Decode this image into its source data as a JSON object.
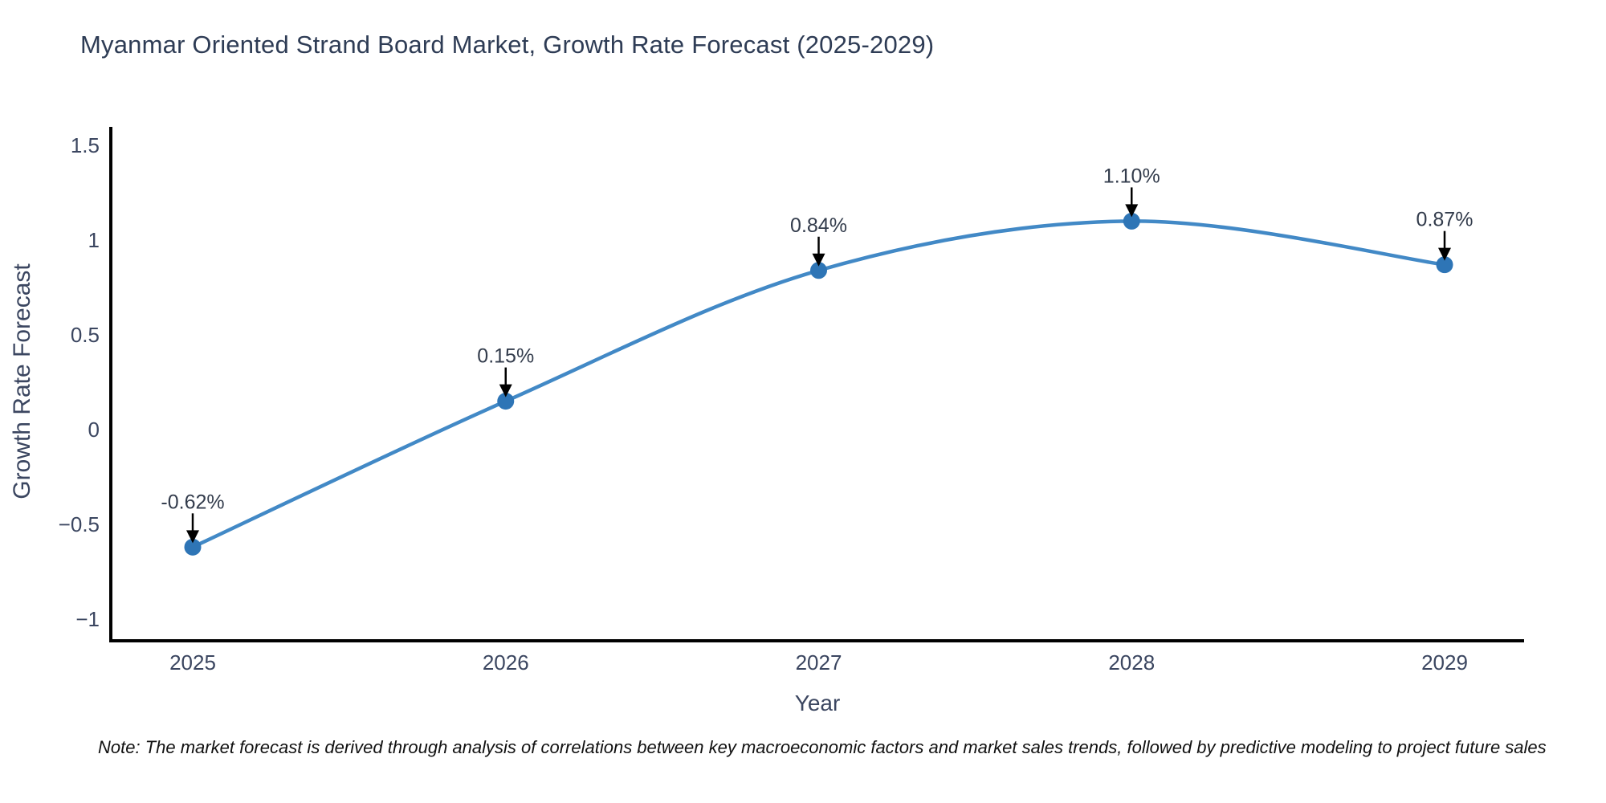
{
  "title": "Myanmar Oriented Strand Board Market, Growth Rate Forecast (2025-2029)",
  "note": "Note: The market forecast is derived through analysis of correlations between key macroeconomic factors and market sales trends, followed by predictive modeling to project future sales",
  "chart_data": {
    "type": "line",
    "title": "Myanmar Oriented Strand Board Market, Growth Rate Forecast (2025-2029)",
    "xlabel": "Year",
    "ylabel": "Growth Rate Forecast",
    "x": [
      2025,
      2026,
      2027,
      2028,
      2029
    ],
    "values": [
      -0.62,
      0.15,
      0.84,
      1.1,
      0.87
    ],
    "point_labels": [
      "-0.62%",
      "0.15%",
      "0.84%",
      "1.10%",
      "0.87%"
    ],
    "x_tick_labels": [
      "2025",
      "2026",
      "2027",
      "2028",
      "2029"
    ],
    "y_tick_labels": [
      "1.5",
      "1",
      "0.5",
      "0",
      "−0.5",
      "−1"
    ],
    "y_tick_values": [
      1.5,
      1,
      0.5,
      0,
      -0.5,
      -1
    ],
    "ylim": [
      -1.1,
      1.6
    ],
    "grid": false,
    "legend": "none",
    "line_color": "#4289c6",
    "marker_color": "#2e75b6",
    "arrow_color": "#000000",
    "axis_color": "#000000",
    "tick_text_color": "#3b4660",
    "annotation_text_color": "#333c4c"
  }
}
